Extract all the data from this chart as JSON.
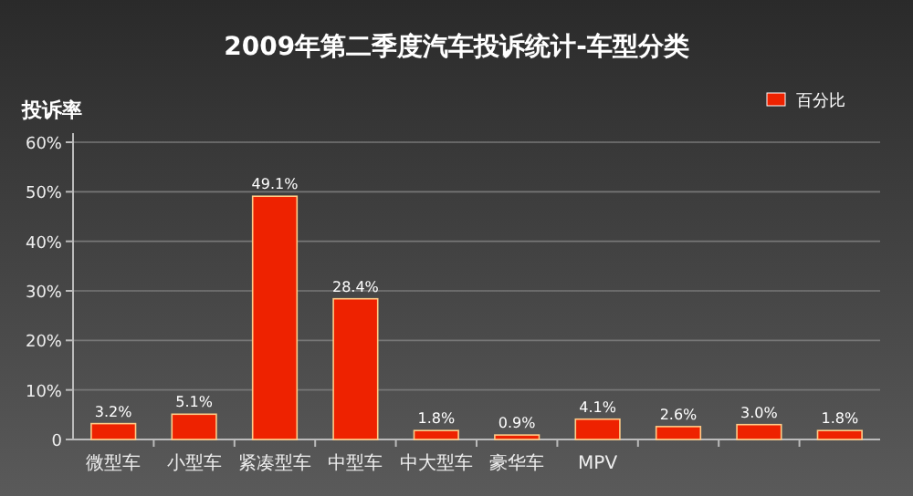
{
  "chart_data": {
    "type": "bar",
    "title": "2009年第二季度汽车投诉统计-车型分类",
    "ylabel": "投诉率",
    "categories": [
      "微型车",
      "小型车",
      "紧凑型车",
      "中型车",
      "中大型车",
      "豪华车",
      "MPV",
      null,
      null,
      null
    ],
    "series": [
      {
        "name": "百分比",
        "color": "#ee2200",
        "values": [
          3.2,
          5.1,
          49.1,
          28.4,
          1.8,
          0.9,
          4.1,
          2.6,
          3.0,
          1.8
        ],
        "value_labels": [
          "3.2%",
          "5.1%",
          "49.1%",
          "28.4%",
          "1.8%",
          "0.9%",
          "4.1%",
          "2.6%",
          "3.0%",
          "1.8%"
        ]
      }
    ],
    "ylim": [
      0,
      60
    ],
    "yticks": [
      0,
      {
        "value": 10,
        "label": "10%"
      },
      {
        "value": 20,
        "label": "20%"
      },
      {
        "value": 30,
        "label": "30%"
      },
      {
        "value": 40,
        "label": "40%"
      },
      {
        "value": 50,
        "label": "50%"
      },
      {
        "value": 60,
        "label": "60%"
      }
    ],
    "grid": "y",
    "legend": "top right"
  }
}
